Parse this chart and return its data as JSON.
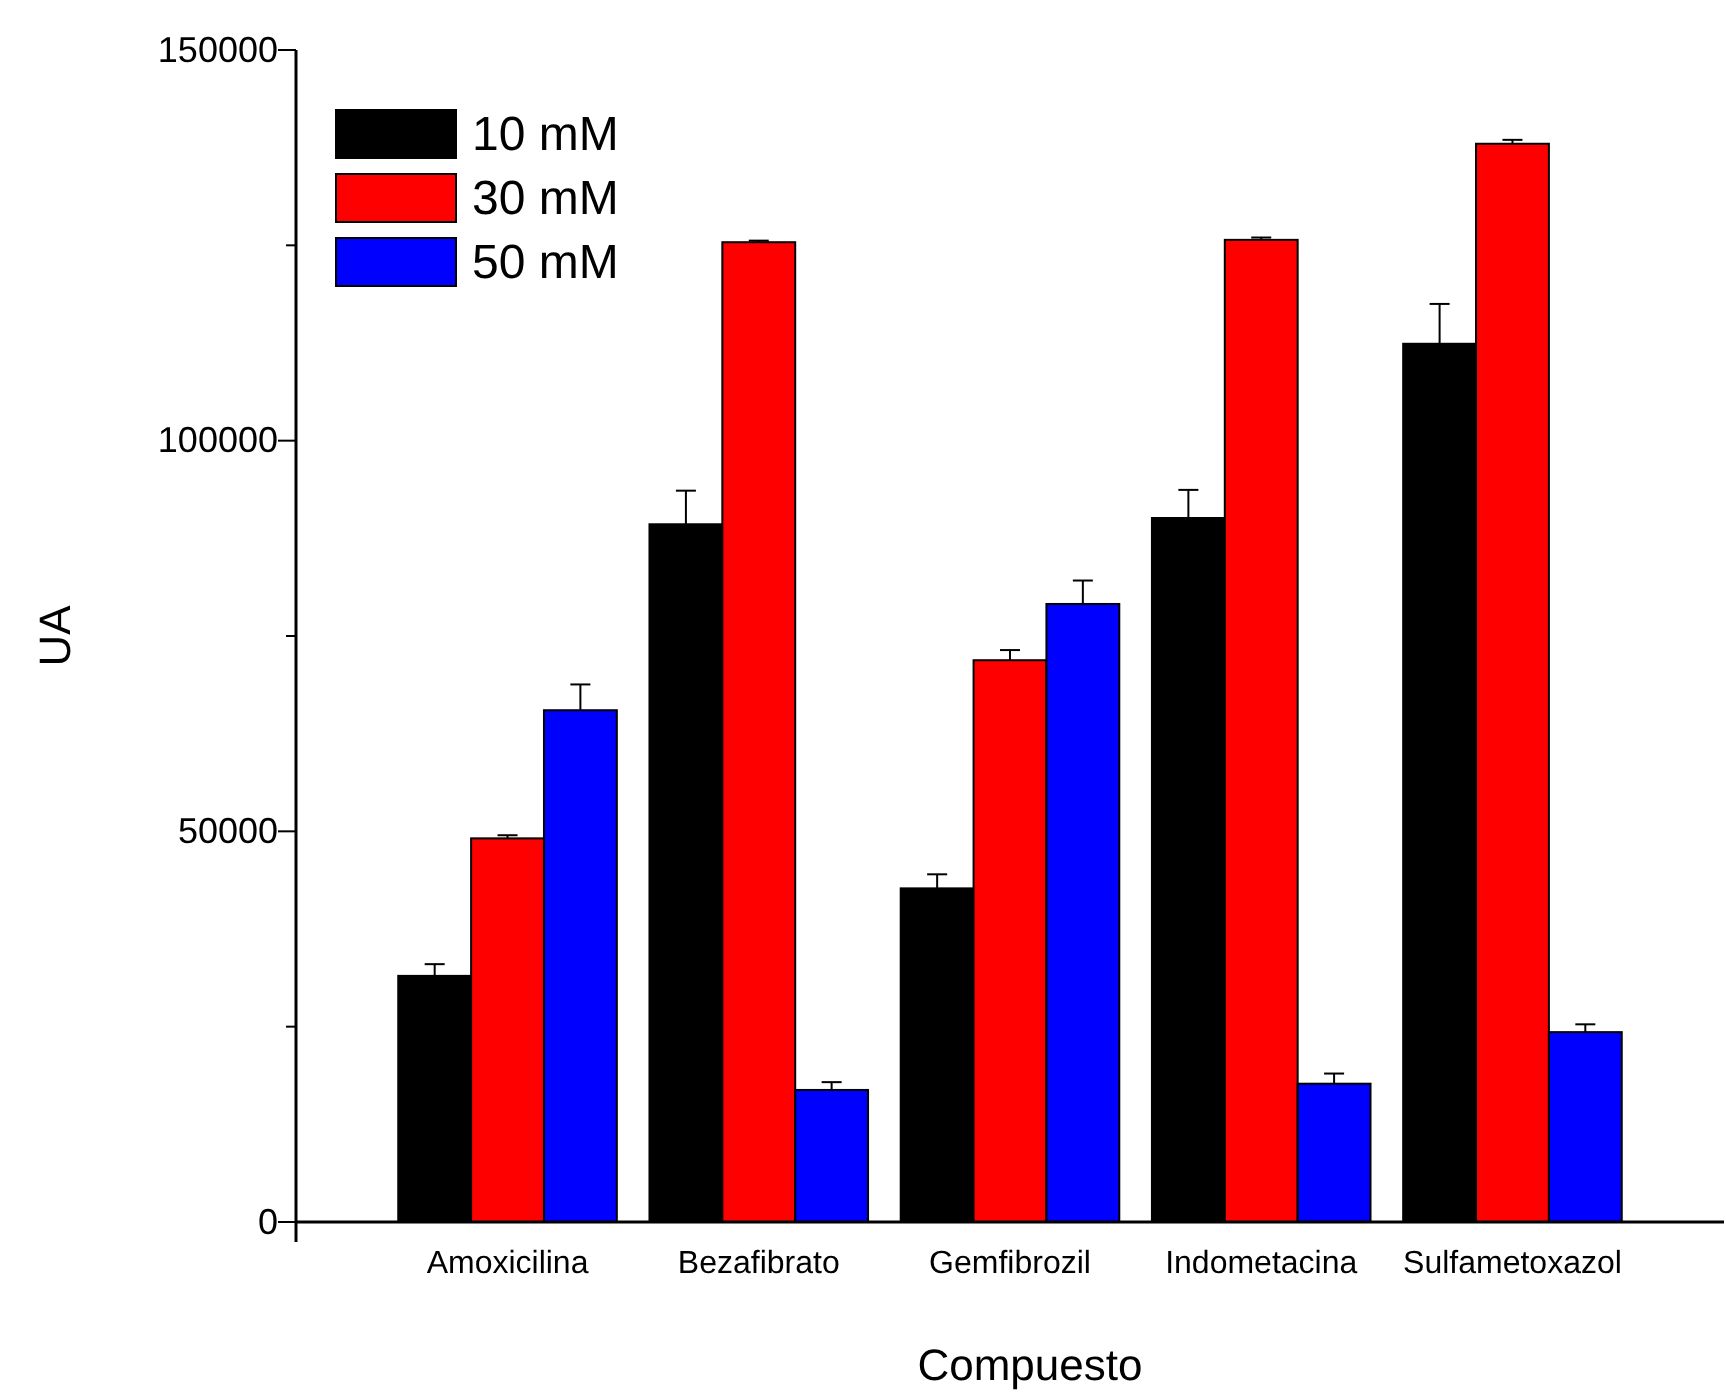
{
  "chart_data": {
    "type": "bar",
    "xlabel": "Compuesto",
    "ylabel": "UA",
    "categories": [
      "Amoxicilina",
      "Bezafibrato",
      "Gemfibrozil",
      "Indometacina",
      "Sulfametoxazol"
    ],
    "series": [
      {
        "name": "10 mM",
        "color": "#000000",
        "values": [
          31500,
          89300,
          42700,
          90100,
          112400
        ],
        "errors": [
          1500,
          4300,
          1800,
          3600,
          5100
        ]
      },
      {
        "name": "30 mM",
        "color": "#ff0000",
        "values": [
          49100,
          125400,
          71900,
          125700,
          138000
        ],
        "errors": [
          400,
          200,
          1300,
          300,
          500
        ]
      },
      {
        "name": "50 mM",
        "color": "#0000ff",
        "values": [
          65500,
          16900,
          79100,
          17700,
          24300
        ],
        "errors": [
          3300,
          1000,
          3000,
          1300,
          1000
        ]
      }
    ],
    "ylim": [
      0,
      150000
    ],
    "yticks": [
      0,
      {
        "value": 25000,
        "label": null
      },
      50000,
      {
        "value": 75000,
        "label": null
      },
      100000,
      {
        "value": 125000,
        "label": null
      },
      150000
    ],
    "legend": "top left",
    "grid": false
  }
}
